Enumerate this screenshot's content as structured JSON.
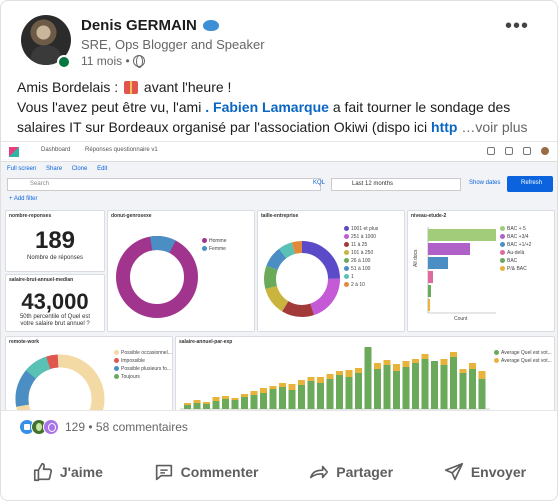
{
  "post": {
    "author": "Denis GERMAIN",
    "author_badge_icon": "whale-icon",
    "headline": "SRE, Ops Blogger and Speaker",
    "time": "11 mois •",
    "visibility_icon": "globe-icon",
    "more_label": "•••",
    "text_line1_a": "Amis Bordelais : ",
    "text_line1_b": " avant l'heure !",
    "text_line2_a": "Vous l'avez peut être vu, l'ami ",
    "mention": ". Fabien Lamarque",
    "text_line2_b": " a fait tourner le sondage des",
    "text_line3_a": "salaires IT sur Bordeaux organisé par l'association Okiwi (dispo ici ",
    "link": "http",
    "see_more": " …voir plus"
  },
  "dashboard": {
    "crumb_root": "Dashboard",
    "crumb_page": "Réponses questionnaire v1",
    "menu": [
      "Full screen",
      "Share",
      "Clone",
      "Edit"
    ],
    "search_placeholder": "Search",
    "kql": "KQL",
    "time_range": "Last 12 months",
    "show_dates": "Show dates",
    "refresh": "Refresh",
    "add_filter": "+ Add filter",
    "panels": {
      "nombre": {
        "title": "nombre-reponses",
        "value": "189",
        "label": "Nombre de réponses"
      },
      "median": {
        "title": "salaire-brut-annuel-median",
        "value": "43,000",
        "label1": "50th percentile of Quel est",
        "label2": "votre salaire brut annuel ?"
      },
      "donut_genre": {
        "title": "donut-genrosexe",
        "legend": [
          "Homme",
          "Femme"
        ]
      },
      "taille": {
        "title": "taille-entreprise",
        "legend": [
          "1001 et plus",
          "251 à 1000",
          "11 à 25",
          "101 à 250",
          "26 à 100",
          "51 à 100",
          "1",
          "2 à 10"
        ]
      },
      "niveau": {
        "title": "niveau-etude-2",
        "legend": [
          "BAC + 5",
          "BAC +3/4",
          "BAC +1/+2",
          "Au-delà",
          "BAC",
          "P/& BAC"
        ],
        "ylabel": "All docs",
        "xlabel": "Count"
      },
      "remote": {
        "title": "remote-work",
        "legend": [
          "Possible occasionnel...",
          "Impossible",
          "Possible plusieurs fo...",
          "Toujours"
        ]
      },
      "salaire_exp": {
        "title": "salaire-annuel-par-exp",
        "legend": [
          "Average Quel est vot...",
          "Average Quel est vot..."
        ]
      }
    },
    "colors": {
      "kibana_blue": "#0b64dd",
      "purple": "#a1348c",
      "blue": "#4a8ec4",
      "green": "#6aaa5a",
      "orange": "#e8b33a",
      "teal": "#5ac1b5",
      "sand": "#f3d9a3"
    }
  },
  "reactions": {
    "count": "129 • 58 commentaires"
  },
  "actions": {
    "like": "J'aime",
    "comment": "Commenter",
    "share": "Partager",
    "send": "Envoyer"
  }
}
